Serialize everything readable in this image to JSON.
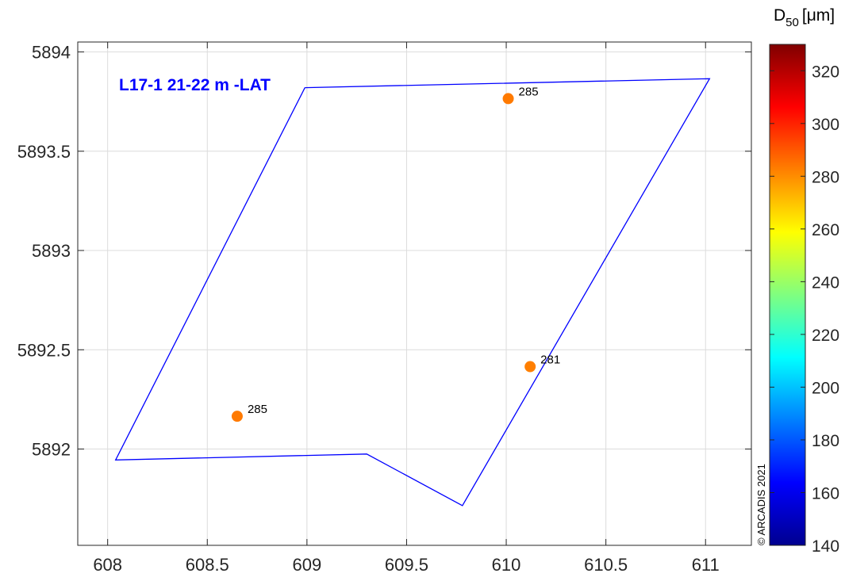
{
  "chart_data": {
    "type": "scatter",
    "title": "L17-1 21-22 m -LAT",
    "xlabel": "",
    "ylabel": "",
    "xlim": [
      607.85,
      611.23
    ],
    "ylim": [
      5891.515,
      5894.05
    ],
    "xticks": [
      608,
      608.5,
      609,
      609.5,
      610,
      610.5,
      611
    ],
    "xtick_labels": [
      "608",
      "608.5",
      "609",
      "609.5",
      "610",
      "610.5",
      "611"
    ],
    "yticks": [
      5892,
      5892.5,
      5893,
      5893.5,
      5894
    ],
    "ytick_labels": [
      "5892",
      "5892.5",
      "5893",
      "5893.5",
      "5894"
    ],
    "grid": true,
    "boundary_color": "#0000ff",
    "boundary": [
      {
        "x": 608.99,
        "y": 5893.82
      },
      {
        "x": 611.02,
        "y": 5893.865
      },
      {
        "x": 609.78,
        "y": 5891.715
      },
      {
        "x": 609.3,
        "y": 5891.975
      },
      {
        "x": 608.04,
        "y": 5891.945
      },
      {
        "x": 608.99,
        "y": 5893.82
      }
    ],
    "points": [
      {
        "x": 610.01,
        "y": 5893.765,
        "value": 285,
        "label": "285",
        "color": "#ff7a00"
      },
      {
        "x": 610.12,
        "y": 5892.415,
        "value": 281,
        "label": "281",
        "color": "#ff7f00"
      },
      {
        "x": 608.65,
        "y": 5892.165,
        "value": 285,
        "label": "285",
        "color": "#ff7a00"
      }
    ],
    "colorbar": {
      "title": "D",
      "title_subscript": "50",
      "title_unit": "[μm]",
      "range": [
        140,
        330
      ],
      "ticks": [
        140,
        160,
        180,
        200,
        220,
        240,
        260,
        280,
        300,
        320
      ],
      "tick_labels": [
        "140",
        "160",
        "180",
        "200",
        "220",
        "240",
        "260",
        "280",
        "300",
        "320"
      ],
      "colormap": "jet"
    },
    "watermark": "© ARCADIS 2021"
  }
}
